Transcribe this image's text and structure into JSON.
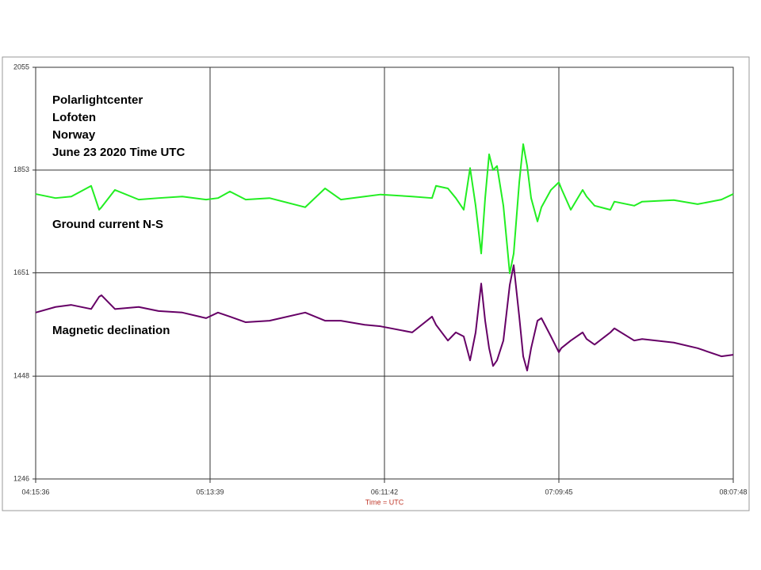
{
  "chart_data": {
    "type": "line",
    "annotations": [
      "Polarlightcenter",
      "Lofoten",
      "Norway",
      "June 23  2020 Time UTC",
      "Ground current N-S",
      "Magnetic declination"
    ],
    "xlabel": "Time = UTC",
    "x": [
      "04:15:36",
      "04:22:12",
      "04:27:28",
      "04:34:04",
      "04:36:43",
      "04:37:30",
      "04:41:59",
      "04:49:54",
      "04:56:30",
      "05:04:25",
      "05:12:20",
      "05:16:17",
      "05:20:15",
      "05:25:31",
      "05:33:26",
      "05:45:19",
      "05:51:55",
      "05:57:11",
      "06:05:06",
      "06:10:23",
      "06:20:56",
      "06:27:32",
      "06:28:51",
      "06:32:49",
      "06:35:27",
      "06:38:05",
      "06:40:12",
      "06:42:03",
      "06:43:54",
      "06:45:13",
      "06:46:32",
      "06:47:51",
      "06:49:10",
      "06:51:17",
      "06:53:24",
      "06:54:43",
      "06:56:34",
      "06:57:53",
      "06:59:12",
      "07:00:31",
      "07:02:38",
      "07:03:57",
      "07:07:07",
      "07:09:45",
      "07:10:33",
      "07:13:43",
      "07:17:40",
      "07:18:59",
      "07:21:38",
      "07:26:54",
      "07:28:14",
      "07:34:50",
      "07:37:28",
      "07:48:01",
      "07:55:56",
      "08:03:51",
      "08:07:48"
    ],
    "xlim": [
      "04:15:36",
      "08:07:48"
    ],
    "xticks": [
      "04:15:36",
      "05:13:39",
      "06:11:42",
      "07:09:45",
      "08:07:48"
    ],
    "ylim": [
      1246,
      2055
    ],
    "yticks": [
      1246,
      1448,
      1651,
      1853,
      2055
    ],
    "grid": true,
    "series": [
      {
        "color": "#22ee22",
        "values": [
          1806,
          1798,
          1801,
          1822,
          1775,
          1780,
          1814,
          1795,
          1798,
          1801,
          1795,
          1798,
          1811,
          1795,
          1798,
          1780,
          1817,
          1795,
          1801,
          1805,
          1801,
          1798,
          1822,
          1817,
          1798,
          1775,
          1857,
          1783,
          1689,
          1798,
          1884,
          1853,
          1861,
          1783,
          1650,
          1689,
          1829,
          1904,
          1861,
          1798,
          1752,
          1780,
          1814,
          1829,
          1817,
          1775,
          1814,
          1801,
          1783,
          1775,
          1791,
          1783,
          1791,
          1794,
          1786,
          1795,
          1806
        ]
      },
      {
        "color": "#660066",
        "values": [
          1573,
          1584,
          1588,
          1580,
          1604,
          1607,
          1580,
          1584,
          1576,
          1573,
          1562,
          1573,
          1565,
          1554,
          1557,
          1573,
          1557,
          1557,
          1549,
          1546,
          1534,
          1565,
          1549,
          1518,
          1534,
          1526,
          1479,
          1534,
          1630,
          1557,
          1503,
          1468,
          1479,
          1518,
          1627,
          1666,
          1565,
          1487,
          1459,
          1503,
          1557,
          1562,
          1526,
          1495,
          1503,
          1518,
          1534,
          1521,
          1510,
          1534,
          1542,
          1518,
          1521,
          1514,
          1503,
          1487,
          1490
        ]
      }
    ]
  }
}
